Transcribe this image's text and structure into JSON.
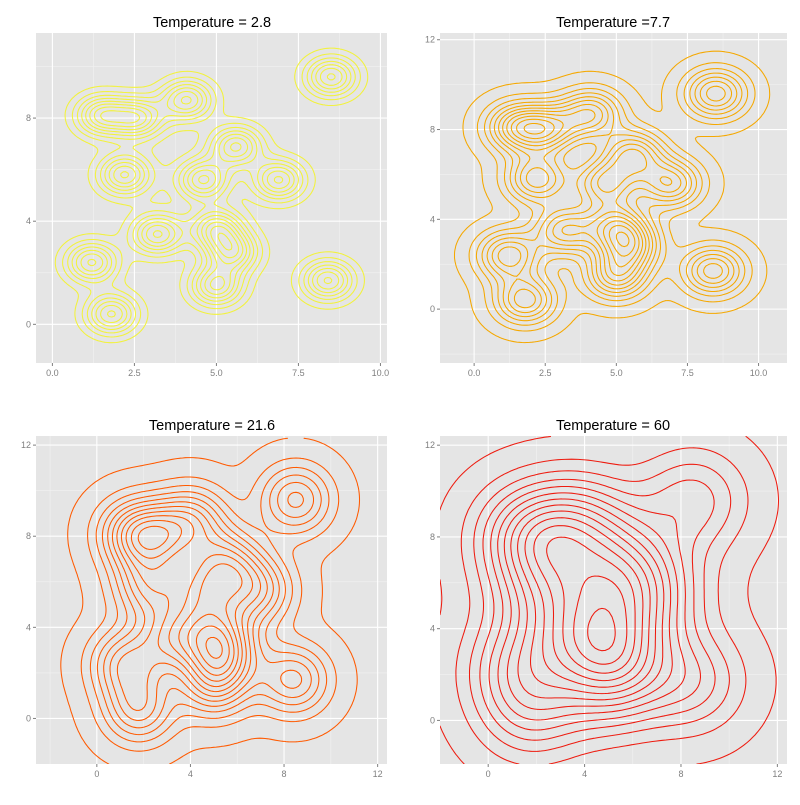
{
  "chart_data": [
    {
      "type": "contour",
      "title": "Temperature = 2.8",
      "line_color": "#f2f23c",
      "xlim": [
        -0.5,
        10.2
      ],
      "ylim": [
        -1.5,
        11.3
      ],
      "x_ticks": [
        0.0,
        2.5,
        5.0,
        7.5,
        10.0
      ],
      "x_tick_labels": [
        "0.0",
        "2.5",
        "5.0",
        "7.5",
        "10.0"
      ],
      "y_ticks": [
        0,
        4,
        8
      ],
      "y_tick_labels": [
        "0",
        "4",
        "8"
      ],
      "peaks": [
        {
          "x": 1.8,
          "y": 0.4
        },
        {
          "x": 1.2,
          "y": 2.4
        },
        {
          "x": 3.2,
          "y": 3.5
        },
        {
          "x": 5.0,
          "y": 1.5
        },
        {
          "x": 5.5,
          "y": 2.8
        },
        {
          "x": 5.0,
          "y": 3.7
        },
        {
          "x": 2.2,
          "y": 5.8
        },
        {
          "x": 4.6,
          "y": 5.6
        },
        {
          "x": 6.9,
          "y": 5.6
        },
        {
          "x": 5.6,
          "y": 6.9
        },
        {
          "x": 1.5,
          "y": 8.1
        },
        {
          "x": 2.6,
          "y": 8.0
        },
        {
          "x": 4.1,
          "y": 8.7
        },
        {
          "x": 8.5,
          "y": 9.6
        },
        {
          "x": 8.4,
          "y": 1.7
        }
      ]
    },
    {
      "type": "contour",
      "title": "Temperature =7.7",
      "line_color": "#f5a800",
      "xlim": [
        -1.2,
        11.0
      ],
      "ylim": [
        -2.4,
        12.3
      ],
      "x_ticks": [
        0.0,
        2.5,
        5.0,
        7.5,
        10.0
      ],
      "x_tick_labels": [
        "0.0",
        "2.5",
        "5.0",
        "7.5",
        "10.0"
      ],
      "y_ticks": [
        0,
        4,
        8,
        12
      ],
      "y_tick_labels": [
        "0",
        "4",
        "8",
        "12"
      ],
      "peaks": [
        {
          "x": 1.8,
          "y": 0.4
        },
        {
          "x": 1.2,
          "y": 2.4
        },
        {
          "x": 3.2,
          "y": 3.5
        },
        {
          "x": 5.0,
          "y": 1.5
        },
        {
          "x": 5.5,
          "y": 2.8
        },
        {
          "x": 5.0,
          "y": 3.7
        },
        {
          "x": 2.2,
          "y": 5.8
        },
        {
          "x": 4.6,
          "y": 5.6
        },
        {
          "x": 6.9,
          "y": 5.6
        },
        {
          "x": 5.6,
          "y": 6.9
        },
        {
          "x": 1.5,
          "y": 8.1
        },
        {
          "x": 2.6,
          "y": 8.0
        },
        {
          "x": 4.1,
          "y": 8.7
        },
        {
          "x": 8.5,
          "y": 9.6
        },
        {
          "x": 8.4,
          "y": 1.7
        }
      ]
    },
    {
      "type": "contour",
      "title": "Temperature = 21.6",
      "line_color": "#ff5a00",
      "xlim": [
        -2.6,
        12.4
      ],
      "ylim": [
        -2.0,
        12.4
      ],
      "x_ticks": [
        0,
        4,
        8,
        12
      ],
      "x_tick_labels": [
        "0",
        "4",
        "8",
        "12"
      ],
      "y_ticks": [
        0,
        4,
        8,
        12
      ],
      "y_tick_labels": [
        "0",
        "4",
        "8",
        "12"
      ],
      "peaks": [
        {
          "x": 1.8,
          "y": 0.4
        },
        {
          "x": 1.2,
          "y": 2.4
        },
        {
          "x": 3.2,
          "y": 3.5
        },
        {
          "x": 5.0,
          "y": 1.5
        },
        {
          "x": 5.5,
          "y": 2.8
        },
        {
          "x": 5.0,
          "y": 3.7
        },
        {
          "x": 2.2,
          "y": 5.8
        },
        {
          "x": 4.6,
          "y": 5.6
        },
        {
          "x": 6.9,
          "y": 5.6
        },
        {
          "x": 5.6,
          "y": 6.9
        },
        {
          "x": 1.5,
          "y": 8.1
        },
        {
          "x": 2.6,
          "y": 8.0
        },
        {
          "x": 4.1,
          "y": 8.7
        },
        {
          "x": 8.5,
          "y": 9.6
        },
        {
          "x": 8.4,
          "y": 1.7
        }
      ]
    },
    {
      "type": "contour",
      "title": "Temperature = 60",
      "line_color": "#ee1c10",
      "xlim": [
        -2.0,
        12.4
      ],
      "ylim": [
        -1.9,
        12.4
      ],
      "x_ticks": [
        0,
        4,
        8,
        12
      ],
      "x_tick_labels": [
        "0",
        "4",
        "8",
        "12"
      ],
      "y_ticks": [
        0,
        4,
        8,
        12
      ],
      "y_tick_labels": [
        "0",
        "4",
        "8",
        "12"
      ],
      "peaks": [
        {
          "x": 1.8,
          "y": 0.4
        },
        {
          "x": 1.2,
          "y": 2.4
        },
        {
          "x": 3.2,
          "y": 3.5
        },
        {
          "x": 5.0,
          "y": 1.5
        },
        {
          "x": 5.5,
          "y": 2.8
        },
        {
          "x": 5.0,
          "y": 3.7
        },
        {
          "x": 2.2,
          "y": 5.8
        },
        {
          "x": 4.6,
          "y": 5.6
        },
        {
          "x": 6.9,
          "y": 5.6
        },
        {
          "x": 5.6,
          "y": 6.9
        },
        {
          "x": 1.5,
          "y": 8.1
        },
        {
          "x": 2.6,
          "y": 8.0
        },
        {
          "x": 4.1,
          "y": 8.7
        },
        {
          "x": 8.5,
          "y": 9.6
        },
        {
          "x": 8.4,
          "y": 1.7
        }
      ]
    }
  ]
}
